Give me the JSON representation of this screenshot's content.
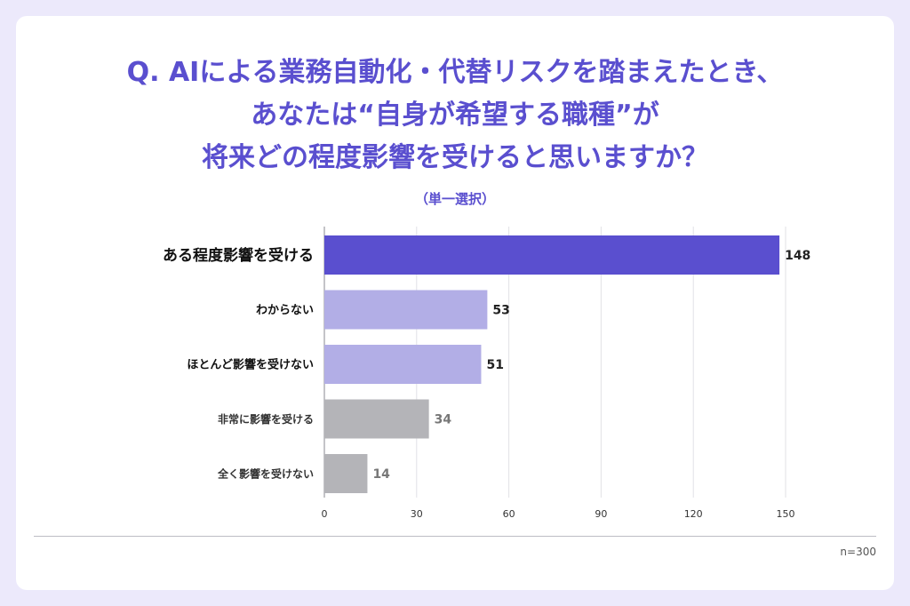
{
  "title": {
    "line1": "Q. AIによる業務自動化・代替リスクを踏まえたとき、",
    "line2": "あなたは“自身が希望する職種”が",
    "line3": "将来どの程度影響を受けると思いますか？"
  },
  "subtitle": "（単一選択）",
  "note": "n=300",
  "colors": {
    "primary": "#5a4fcf",
    "secondary": "#b2aee6",
    "neutral": "#b4b4b8",
    "background": "#ece9fb"
  },
  "chart_data": {
    "type": "bar",
    "orientation": "horizontal",
    "categories": [
      "ある程度影響を受ける",
      "わからない",
      "ほとんど影響を受けない",
      "非常に影響を受ける",
      "全く影響を受けない"
    ],
    "values": [
      148,
      53,
      51,
      34,
      14
    ],
    "bar_colors": [
      "#5a4fcf",
      "#b2aee6",
      "#b2aee6",
      "#b4b4b8",
      "#b4b4b8"
    ],
    "xlim": [
      0,
      150
    ],
    "xticks": [
      0,
      30,
      60,
      90,
      120,
      150
    ],
    "grid": true
  }
}
